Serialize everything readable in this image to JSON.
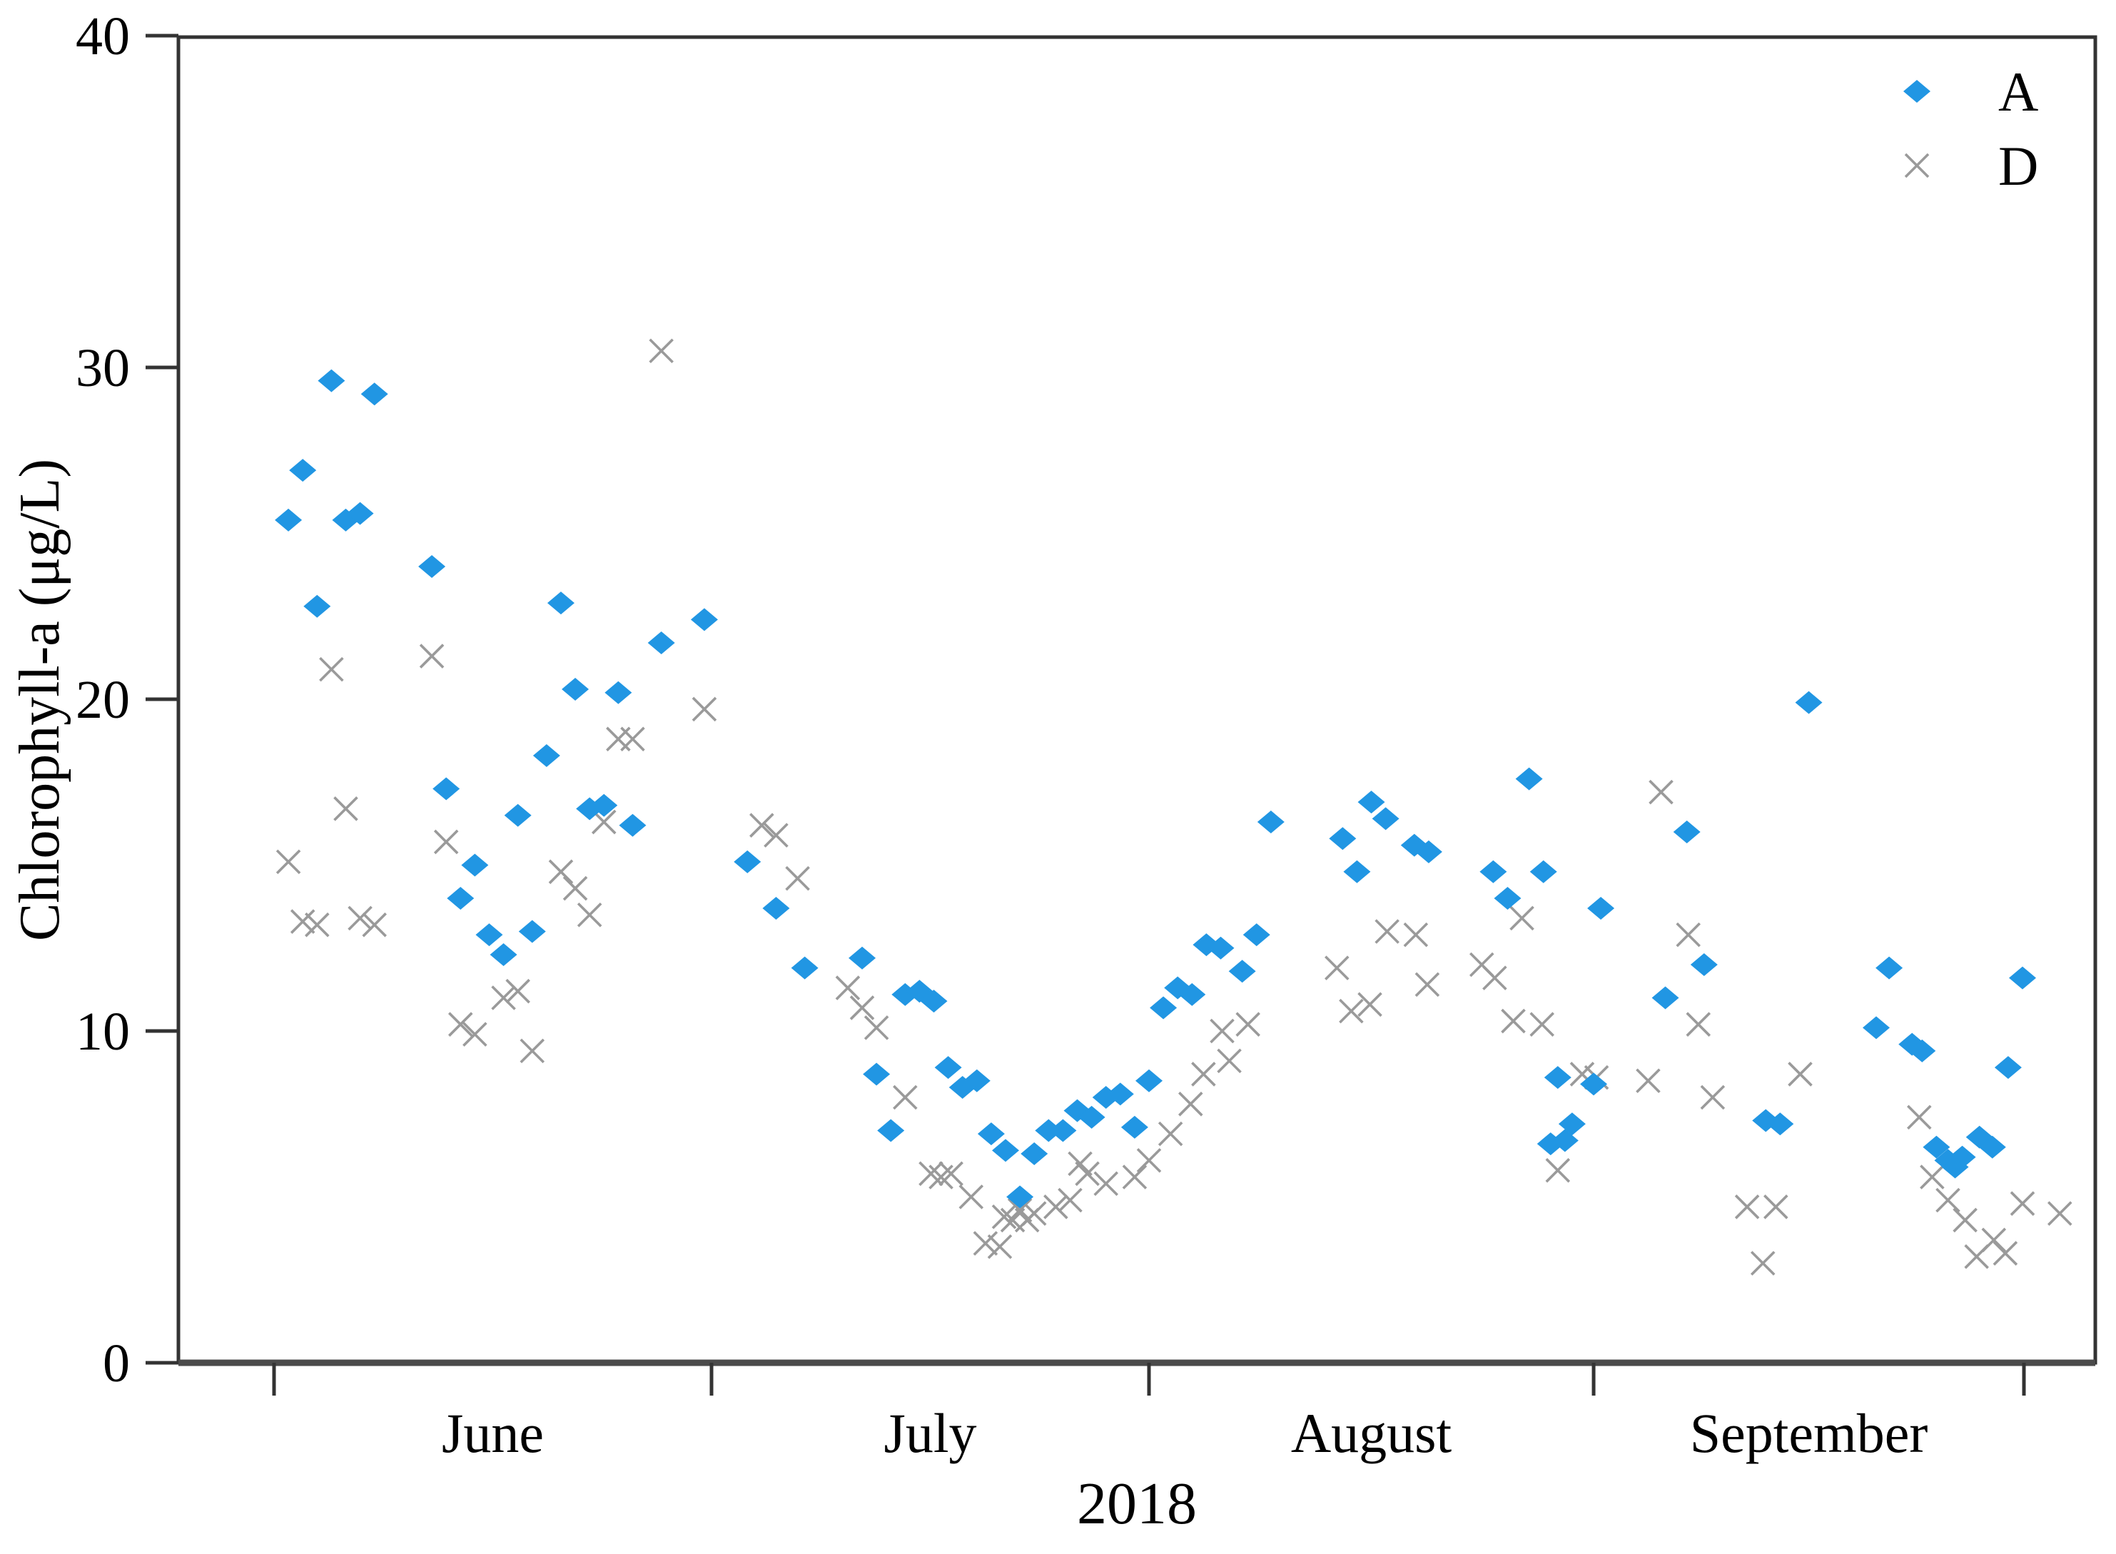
{
  "chart_data": {
    "type": "scatter",
    "title": "",
    "xlabel": "2018",
    "ylabel": "Chlorophyll-a (μg/L)",
    "x_unit": "days since June 1, 2018",
    "xlim": [
      -6.7,
      127
    ],
    "ylim": [
      0,
      40
    ],
    "y_ticks": [
      0,
      10,
      20,
      30,
      40
    ],
    "x_boundary_ticks_days": [
      0,
      30.5,
      61,
      92,
      122
    ],
    "month_labels": [
      {
        "label": "June",
        "day": 15.25
      },
      {
        "label": "July",
        "day": 45.75
      },
      {
        "label": "August",
        "day": 76.5
      },
      {
        "label": "September",
        "day": 107
      }
    ],
    "grid": false,
    "legend_position": "top-right-inside",
    "series": [
      {
        "name": "A",
        "marker": "diamond",
        "color": "#2196E3",
        "points": [
          [
            1,
            25.4
          ],
          [
            2,
            26.9
          ],
          [
            3,
            22.8
          ],
          [
            4,
            29.6
          ],
          [
            5,
            25.4
          ],
          [
            6,
            25.6
          ],
          [
            7,
            29.2
          ],
          [
            11,
            24.0
          ],
          [
            12,
            17.3
          ],
          [
            13,
            14.0
          ],
          [
            14,
            15.0
          ],
          [
            15,
            12.9
          ],
          [
            16,
            12.3
          ],
          [
            17,
            16.5
          ],
          [
            18,
            13.0
          ],
          [
            19,
            18.3
          ],
          [
            20,
            22.9
          ],
          [
            21,
            20.3
          ],
          [
            22,
            16.7
          ],
          [
            23,
            16.8
          ],
          [
            24,
            20.2
          ],
          [
            25,
            16.2
          ],
          [
            27,
            21.7
          ],
          [
            30,
            22.4
          ],
          [
            33,
            15.1
          ],
          [
            35,
            13.7
          ],
          [
            37,
            11.9
          ],
          [
            41,
            12.2
          ],
          [
            42,
            8.7
          ],
          [
            43,
            7.0
          ],
          [
            44,
            11.1
          ],
          [
            45,
            11.2
          ],
          [
            46,
            10.9
          ],
          [
            47,
            8.9
          ],
          [
            48,
            8.3
          ],
          [
            49,
            8.5
          ],
          [
            50,
            6.9
          ],
          [
            51,
            6.4
          ],
          [
            52,
            5.0
          ],
          [
            53,
            6.3
          ],
          [
            54,
            7.0
          ],
          [
            55,
            7.0
          ],
          [
            56,
            7.6
          ],
          [
            57,
            7.4
          ],
          [
            58,
            8.0
          ],
          [
            59,
            8.1
          ],
          [
            60,
            7.1
          ],
          [
            61,
            8.5
          ],
          [
            62,
            10.7
          ],
          [
            63,
            11.3
          ],
          [
            64,
            11.1
          ],
          [
            65,
            12.6
          ],
          [
            66,
            12.5
          ],
          [
            67.5,
            11.8
          ],
          [
            68.5,
            12.9
          ],
          [
            69.5,
            16.3
          ],
          [
            74.5,
            15.8
          ],
          [
            75.5,
            14.8
          ],
          [
            76.5,
            16.9
          ],
          [
            77.5,
            16.4
          ],
          [
            79.5,
            15.6
          ],
          [
            80.5,
            15.4
          ],
          [
            85,
            14.8
          ],
          [
            86,
            14.0
          ],
          [
            87.5,
            17.6
          ],
          [
            88.5,
            14.8
          ],
          [
            89,
            6.6
          ],
          [
            89.5,
            8.6
          ],
          [
            90,
            6.7
          ],
          [
            90.5,
            7.2
          ],
          [
            92,
            8.4
          ],
          [
            92.5,
            13.7
          ],
          [
            97,
            11.0
          ],
          [
            98.5,
            16.0
          ],
          [
            99.7,
            12.0
          ],
          [
            104,
            7.3
          ],
          [
            105,
            7.2
          ],
          [
            107,
            19.9
          ],
          [
            111.7,
            10.1
          ],
          [
            112.6,
            11.9
          ],
          [
            114.2,
            9.6
          ],
          [
            114.9,
            9.4
          ],
          [
            115.9,
            6.5
          ],
          [
            116.7,
            6.1
          ],
          [
            117.2,
            5.9
          ],
          [
            117.7,
            6.2
          ],
          [
            118.9,
            6.8
          ],
          [
            119.8,
            6.5
          ],
          [
            120.9,
            8.9
          ],
          [
            121.9,
            11.6
          ]
        ]
      },
      {
        "name": "D",
        "marker": "x",
        "color": "#9A9A9A",
        "points": [
          [
            1,
            15.1
          ],
          [
            2,
            13.3
          ],
          [
            3,
            13.2
          ],
          [
            4,
            20.9
          ],
          [
            5,
            16.7
          ],
          [
            6,
            13.4
          ],
          [
            7,
            13.2
          ],
          [
            11,
            21.3
          ],
          [
            12,
            15.7
          ],
          [
            13,
            10.2
          ],
          [
            14,
            9.9
          ],
          [
            16,
            11.0
          ],
          [
            17,
            11.2
          ],
          [
            18,
            9.4
          ],
          [
            20,
            14.8
          ],
          [
            21,
            14.3
          ],
          [
            22,
            13.5
          ],
          [
            23,
            16.3
          ],
          [
            24,
            18.8
          ],
          [
            25,
            18.8
          ],
          [
            27,
            30.5
          ],
          [
            30,
            19.7
          ],
          [
            34,
            16.2
          ],
          [
            35,
            15.9
          ],
          [
            36.5,
            14.6
          ],
          [
            40,
            11.3
          ],
          [
            41,
            10.7
          ],
          [
            42,
            10.1
          ],
          [
            44,
            8.0
          ],
          [
            45.8,
            5.7
          ],
          [
            46.5,
            5.6
          ],
          [
            47.2,
            5.7
          ],
          [
            48.6,
            5.0
          ],
          [
            49.6,
            3.6
          ],
          [
            50.6,
            3.5
          ],
          [
            50.9,
            4.4
          ],
          [
            51.5,
            4.3
          ],
          [
            52,
            4.6
          ],
          [
            52.5,
            4.3
          ],
          [
            53,
            4.5
          ],
          [
            54.5,
            4.7
          ],
          [
            55.5,
            4.9
          ],
          [
            56.2,
            6.0
          ],
          [
            56.7,
            5.7
          ],
          [
            58,
            5.4
          ],
          [
            60,
            5.6
          ],
          [
            61,
            6.1
          ],
          [
            62.5,
            6.9
          ],
          [
            63.9,
            7.8
          ],
          [
            64.8,
            8.7
          ],
          [
            66.1,
            10.0
          ],
          [
            66.6,
            9.1
          ],
          [
            67.9,
            10.2
          ],
          [
            74.1,
            11.9
          ],
          [
            75.1,
            10.6
          ],
          [
            76.4,
            10.8
          ],
          [
            77.6,
            13.0
          ],
          [
            79.6,
            12.9
          ],
          [
            80.4,
            11.4
          ],
          [
            84.2,
            12.0
          ],
          [
            85.1,
            11.6
          ],
          [
            86.4,
            10.3
          ],
          [
            87,
            13.4
          ],
          [
            88.4,
            10.2
          ],
          [
            89.5,
            5.8
          ],
          [
            91.2,
            8.7
          ],
          [
            92.2,
            8.6
          ],
          [
            95.8,
            8.5
          ],
          [
            96.7,
            17.2
          ],
          [
            98.6,
            12.9
          ],
          [
            99.3,
            10.2
          ],
          [
            100.3,
            8.0
          ],
          [
            102.7,
            4.7
          ],
          [
            103.8,
            3.0
          ],
          [
            104.7,
            4.7
          ],
          [
            106.4,
            8.7
          ],
          [
            114.7,
            7.4
          ],
          [
            115.6,
            5.6
          ],
          [
            116.7,
            4.9
          ],
          [
            117.9,
            4.3
          ],
          [
            118.7,
            3.2
          ],
          [
            119.9,
            3.7
          ],
          [
            120.7,
            3.3
          ],
          [
            121.9,
            4.8
          ],
          [
            124.5,
            4.5
          ]
        ]
      }
    ]
  },
  "colors": {
    "series_a": "#2196E3",
    "series_d": "#9A9A9A",
    "frame": "#333333",
    "bottom_axis": "#4A4A4A",
    "text": "#000000",
    "background": "#FFFFFF"
  }
}
